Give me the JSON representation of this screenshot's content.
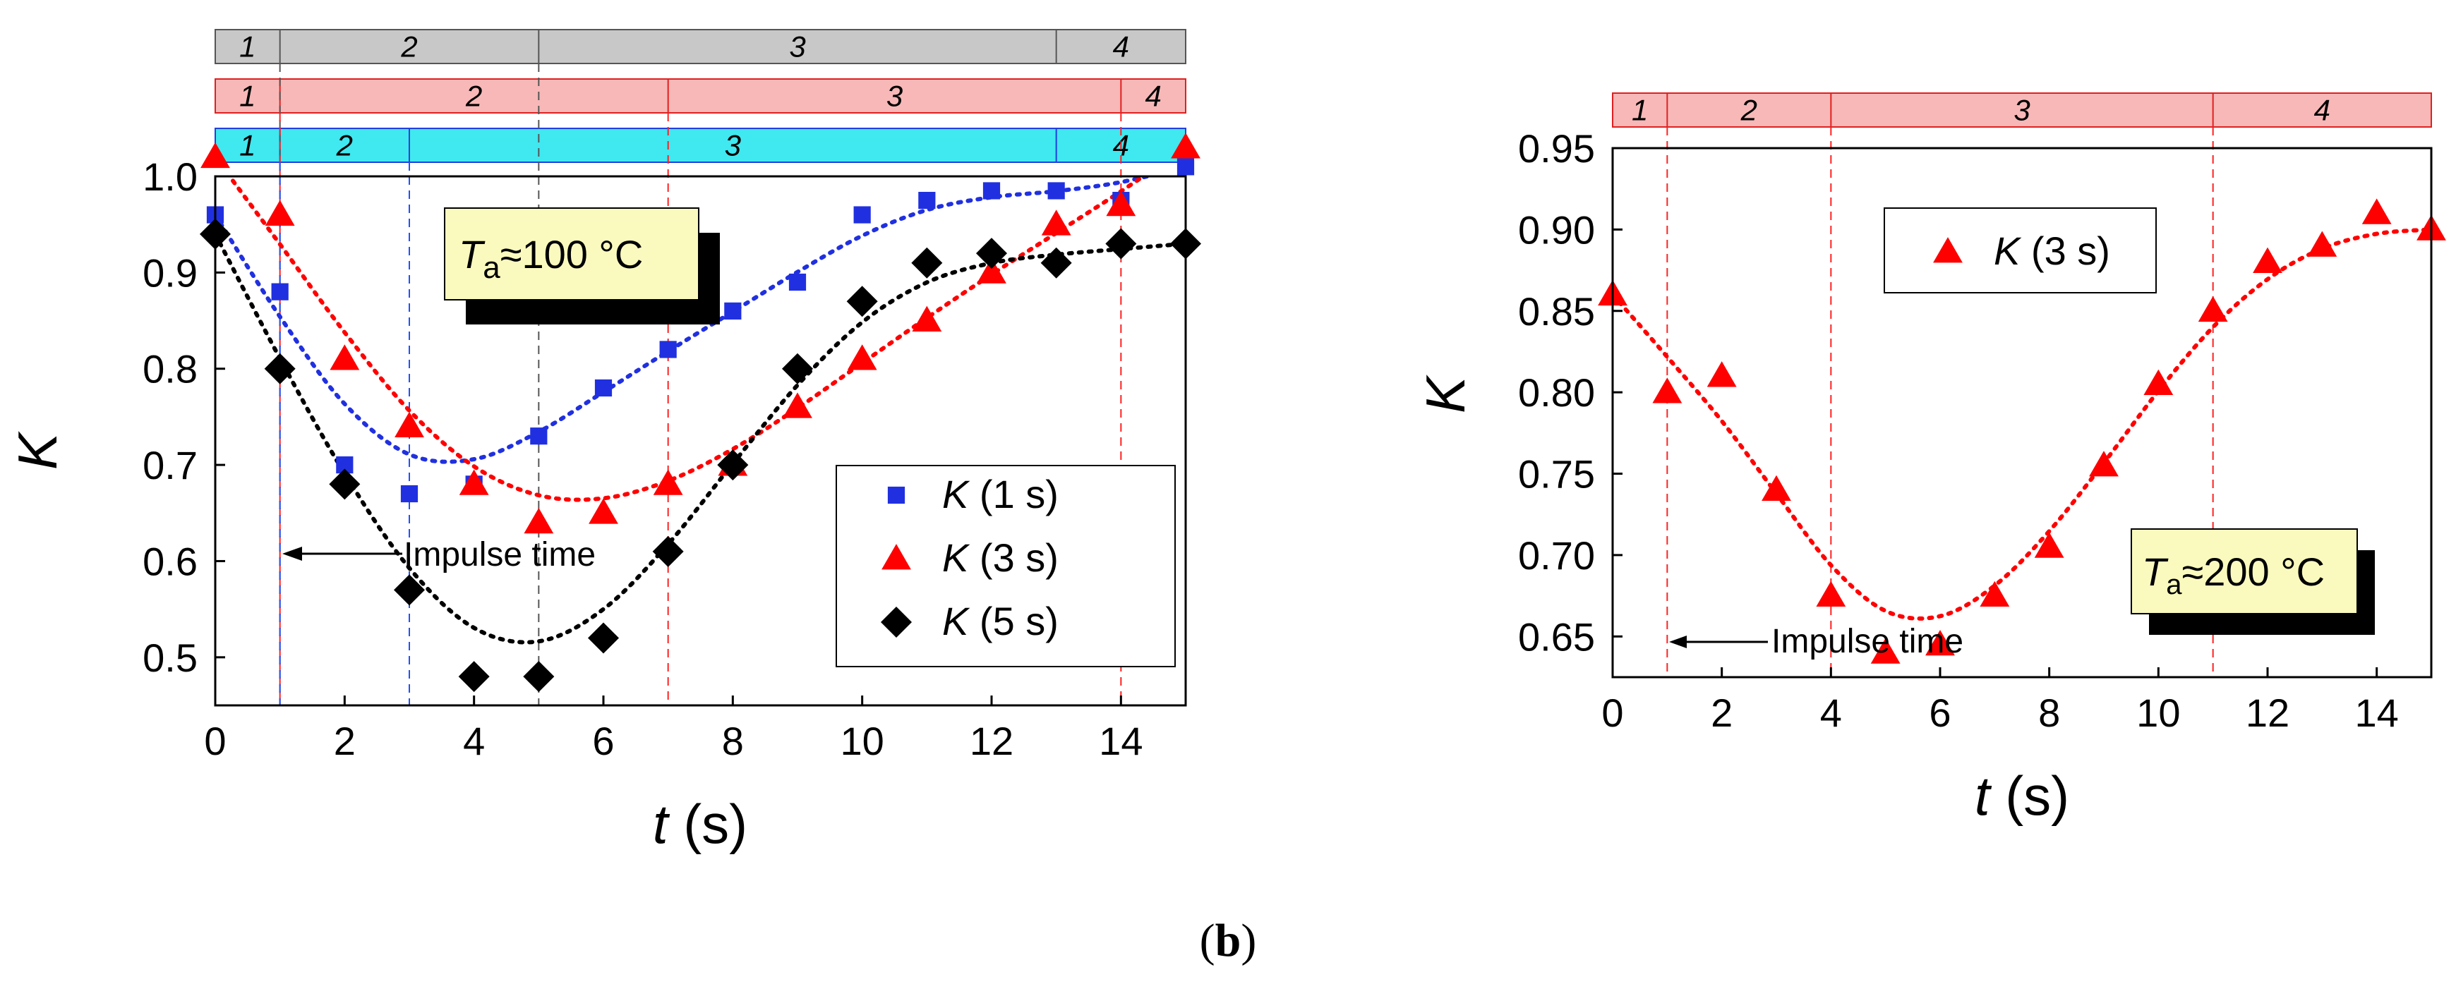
{
  "caption": "(b)",
  "caption_bold": "b",
  "chart_data": [
    {
      "type": "scatter",
      "xlabel_var": "t",
      "xlabel_unit": "(s)",
      "ylabel": "K",
      "xlim": [
        0,
        15
      ],
      "ylim": [
        0.45,
        1.0
      ],
      "xticks": [
        0,
        2,
        4,
        6,
        8,
        10,
        12,
        14
      ],
      "xtick_labels": [
        "0",
        "2",
        "4",
        "6",
        "8",
        "10",
        "12",
        "14"
      ],
      "yticks": [
        0.5,
        0.6,
        0.7,
        0.8,
        0.9,
        1.0
      ],
      "ytick_labels": [
        "0.5",
        "0.6",
        "0.7",
        "0.8",
        "0.9",
        "1.0"
      ],
      "temperature_label": {
        "sym": "T",
        "sub": "a",
        "rest": "≈100 °C"
      },
      "impulse_label": "Impulse time",
      "impulse_t": 1,
      "phase_bands": [
        {
          "name": "gray",
          "color": "#c8c8c8",
          "stroke": "#555555",
          "bounds": [
            1,
            5,
            13
          ],
          "labels": [
            "1",
            "2",
            "3",
            "4"
          ]
        },
        {
          "name": "pink",
          "color": "#f8b8b8",
          "stroke": "#e02020",
          "bounds": [
            1,
            7,
            14
          ],
          "labels": [
            "1",
            "2",
            "3",
            "4"
          ]
        },
        {
          "name": "cyan",
          "color": "#40e8f0",
          "stroke": "#2040e0",
          "bounds": [
            1,
            3,
            13
          ],
          "labels": [
            "1",
            "2",
            "3",
            "4"
          ]
        }
      ],
      "series": [
        {
          "name": "K (1 s)",
          "sym": "K",
          "rest": " (1 s)",
          "marker": "square",
          "color": "#2030e0",
          "x": [
            0,
            1,
            2,
            3,
            4,
            5,
            6,
            7,
            8,
            9,
            10,
            11,
            12,
            13,
            14,
            15
          ],
          "y": [
            0.96,
            0.88,
            0.7,
            0.67,
            0.68,
            0.73,
            0.78,
            0.82,
            0.86,
            0.89,
            0.96,
            0.975,
            0.985,
            0.985,
            0.975,
            1.01
          ]
        },
        {
          "name": "K (3 s)",
          "sym": "K",
          "rest": " (3 s)",
          "marker": "triangle",
          "color": "#ff0000",
          "x": [
            0,
            1,
            2,
            3,
            4,
            5,
            6,
            7,
            8,
            9,
            10,
            11,
            12,
            13,
            14,
            15
          ],
          "y": [
            1.02,
            0.96,
            0.81,
            0.74,
            0.68,
            0.64,
            0.65,
            0.68,
            0.7,
            0.76,
            0.81,
            0.85,
            0.9,
            0.95,
            0.97,
            1.03
          ]
        },
        {
          "name": "K (5 s)",
          "sym": "K",
          "rest": " (5 s)",
          "marker": "diamond",
          "color": "#000000",
          "x": [
            0,
            1,
            2,
            3,
            4,
            5,
            6,
            7,
            8,
            9,
            10,
            11,
            12,
            13,
            14,
            15
          ],
          "y": [
            0.94,
            0.8,
            0.68,
            0.57,
            0.48,
            0.48,
            0.52,
            0.61,
            0.7,
            0.8,
            0.87,
            0.91,
            0.92,
            0.91,
            0.93,
            0.93
          ]
        }
      ]
    },
    {
      "type": "scatter",
      "xlabel_var": "t",
      "xlabel_unit": "(s)",
      "ylabel": "K",
      "xlim": [
        0,
        15
      ],
      "ylim": [
        0.625,
        0.95
      ],
      "xticks": [
        0,
        2,
        4,
        6,
        8,
        10,
        12,
        14
      ],
      "xtick_labels": [
        "0",
        "2",
        "4",
        "6",
        "8",
        "10",
        "12",
        "14"
      ],
      "yticks": [
        0.65,
        0.7,
        0.75,
        0.8,
        0.85,
        0.9,
        0.95
      ],
      "ytick_labels": [
        "0.65",
        "0.70",
        "0.75",
        "0.80",
        "0.85",
        "0.90",
        "0.95"
      ],
      "temperature_label": {
        "sym": "T",
        "sub": "a",
        "rest": "≈200 °C"
      },
      "impulse_label": "Impulse time",
      "impulse_t": 1,
      "phase_bands": [
        {
          "name": "pink",
          "color": "#f8b8b8",
          "stroke": "#e02020",
          "bounds": [
            1,
            4,
            11
          ],
          "labels": [
            "1",
            "2",
            "3",
            "4"
          ]
        }
      ],
      "series": [
        {
          "name": "K (3 s)",
          "sym": "K",
          "rest": " (3 s)",
          "marker": "triangle",
          "color": "#ff0000",
          "x": [
            0,
            1,
            2,
            3,
            4,
            5,
            6,
            7,
            8,
            9,
            10,
            11,
            12,
            13,
            14,
            15
          ],
          "y": [
            0.86,
            0.8,
            0.81,
            0.74,
            0.675,
            0.64,
            0.645,
            0.675,
            0.705,
            0.755,
            0.805,
            0.85,
            0.88,
            0.89,
            0.91,
            0.9
          ]
        }
      ]
    }
  ]
}
